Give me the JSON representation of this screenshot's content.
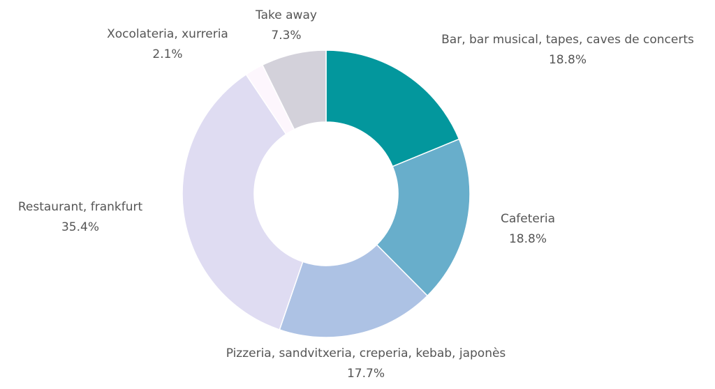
{
  "chart_data": {
    "type": "pie",
    "variant": "donut",
    "title": "",
    "legend": "none",
    "slices": [
      {
        "label": "Bar, bar musical, tapes, caves de concerts",
        "value": 18.8,
        "display": "18.8%",
        "color": "#03979d"
      },
      {
        "label": "Cafeteria",
        "value": 18.8,
        "display": "18.8%",
        "color": "#68aecb"
      },
      {
        "label": "Pizzeria, sandvitxeria, creperia, kebab, japonès",
        "value": 17.7,
        "display": "17.7%",
        "color": "#adc2e4"
      },
      {
        "label": "Restaurant, frankfurt",
        "value": 35.4,
        "display": "35.4%",
        "color": "#dfdcf2"
      },
      {
        "label": "Xocolateria, xurreria",
        "value": 2.1,
        "display": "2.1%",
        "color": "#fdf6fd"
      },
      {
        "label": "Take away",
        "value": 7.3,
        "display": "7.3%",
        "color": "#d3d1da"
      }
    ]
  }
}
